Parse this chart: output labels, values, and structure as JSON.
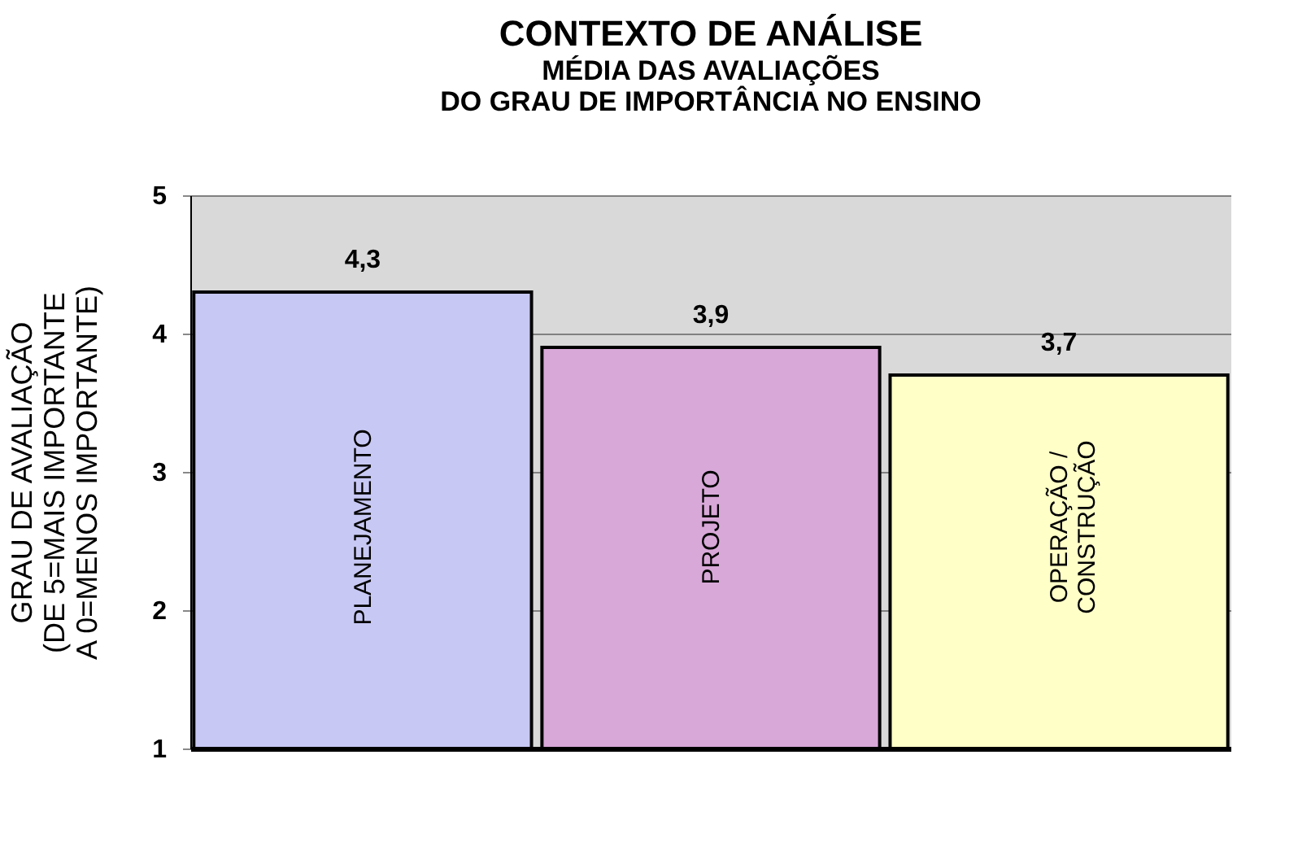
{
  "chart_data": {
    "type": "bar",
    "title": "CONTEXTO DE ANÁLISE",
    "subtitle": "MÉDIA DAS AVALIAÇÕES\nDO GRAU DE IMPORTÂNCIA NO ENSINO",
    "ylabel": "GRAU DE AVALIAÇÃO\n(DE 5=MAIS IMPORTANTE\nA 0=MENOS IMPORTANTE)",
    "categories": [
      "PLANEJAMENTO",
      "PROJETO",
      "OPERAÇÃO /\nCONSTRUÇÃO"
    ],
    "values": [
      4.3,
      3.9,
      3.7
    ],
    "colors": [
      "#c8c8f4",
      "#d8a8d8",
      "#ffffc8"
    ],
    "value_labels": [
      "4,3",
      "3,9",
      "3,7"
    ],
    "ylim": [
      1,
      5
    ],
    "yticks": [
      1,
      2,
      3,
      4,
      5
    ],
    "grid": "y"
  }
}
